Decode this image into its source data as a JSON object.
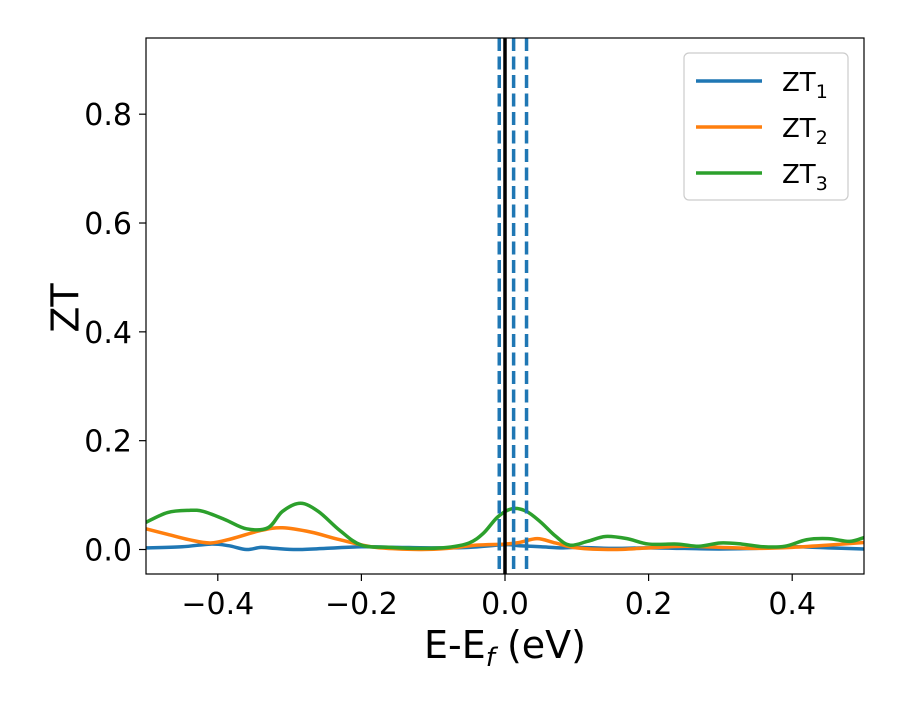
{
  "chart_data": {
    "type": "line",
    "title": "",
    "xlabel_main": "E-E",
    "xlabel_sub": "f",
    "xlabel_unit": " (eV)",
    "ylabel": "ZT",
    "xlim": [
      -0.5,
      0.5
    ],
    "ylim": [
      -0.045,
      0.94
    ],
    "grid": false,
    "legend_position": "top-right",
    "x_ticks": [
      -0.4,
      -0.2,
      0.0,
      0.2,
      0.4
    ],
    "x_tick_labels": [
      "−0.4",
      "−0.2",
      "0.0",
      "0.2",
      "0.4"
    ],
    "y_ticks": [
      0.0,
      0.2,
      0.4,
      0.6,
      0.8
    ],
    "y_tick_labels": [
      "0.0",
      "0.2",
      "0.4",
      "0.6",
      "0.8"
    ],
    "vertical_lines": [
      {
        "x": 0.0,
        "style": "solid",
        "color": "#000000"
      },
      {
        "x": -0.008,
        "style": "dashed",
        "color": "#1f77b4"
      },
      {
        "x": 0.012,
        "style": "dashed",
        "color": "#1f77b4"
      },
      {
        "x": 0.03,
        "style": "dashed",
        "color": "#1f77b4"
      }
    ],
    "series": [
      {
        "name": "ZT",
        "subscript": "1",
        "color": "#1f77b4",
        "x": [
          -0.5,
          -0.45,
          -0.41,
          -0.385,
          -0.36,
          -0.34,
          -0.32,
          -0.29,
          -0.25,
          -0.2,
          -0.15,
          -0.1,
          -0.05,
          0.0,
          0.02,
          0.05,
          0.08,
          0.1,
          0.15,
          0.2,
          0.25,
          0.3,
          0.35,
          0.4,
          0.45,
          0.5
        ],
        "y": [
          0.003,
          0.005,
          0.01,
          0.007,
          0.0,
          0.004,
          0.002,
          0.0,
          0.002,
          0.005,
          0.004,
          0.003,
          0.004,
          0.009,
          0.007,
          0.005,
          0.003,
          0.004,
          0.002,
          0.003,
          0.002,
          0.001,
          0.002,
          0.005,
          0.003,
          0.001
        ]
      },
      {
        "name": "ZT",
        "subscript": "2",
        "color": "#ff7f0e",
        "x": [
          -0.5,
          -0.47,
          -0.44,
          -0.41,
          -0.38,
          -0.34,
          -0.31,
          -0.27,
          -0.23,
          -0.18,
          -0.12,
          -0.08,
          -0.04,
          0.0,
          0.02,
          0.045,
          0.07,
          0.1,
          0.15,
          0.2,
          0.25,
          0.3,
          0.35,
          0.4,
          0.45,
          0.5
        ],
        "y": [
          0.038,
          0.028,
          0.018,
          0.012,
          0.02,
          0.035,
          0.04,
          0.032,
          0.018,
          0.004,
          0.0,
          0.002,
          0.008,
          0.01,
          0.013,
          0.02,
          0.012,
          0.003,
          0.0,
          0.003,
          0.006,
          0.004,
          0.002,
          0.004,
          0.008,
          0.013
        ]
      },
      {
        "name": "ZT",
        "subscript": "3",
        "color": "#2ca02c",
        "x": [
          -0.5,
          -0.47,
          -0.44,
          -0.42,
          -0.39,
          -0.36,
          -0.33,
          -0.31,
          -0.285,
          -0.26,
          -0.23,
          -0.2,
          -0.16,
          -0.12,
          -0.08,
          -0.05,
          -0.03,
          -0.01,
          0.01,
          0.03,
          0.05,
          0.07,
          0.09,
          0.115,
          0.14,
          0.17,
          0.2,
          0.24,
          0.27,
          0.3,
          0.33,
          0.36,
          0.39,
          0.42,
          0.45,
          0.48,
          0.5
        ],
        "y": [
          0.05,
          0.068,
          0.072,
          0.07,
          0.055,
          0.038,
          0.04,
          0.07,
          0.085,
          0.07,
          0.035,
          0.008,
          0.004,
          0.002,
          0.004,
          0.012,
          0.03,
          0.06,
          0.075,
          0.07,
          0.05,
          0.025,
          0.008,
          0.015,
          0.024,
          0.02,
          0.01,
          0.01,
          0.006,
          0.012,
          0.01,
          0.005,
          0.006,
          0.018,
          0.02,
          0.015,
          0.022
        ]
      }
    ]
  }
}
